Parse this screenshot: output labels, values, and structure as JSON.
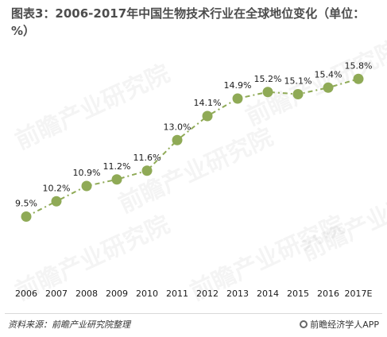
{
  "title": "图表3：2006-2017年中国生物技术行业在全球地位变化（单位：%）",
  "source": "资料来源：前瞻产业研究院整理",
  "brand": "前瞻经济学人APP",
  "watermark": "前瞻产业研究院",
  "chart_data": {
    "type": "line",
    "categories": [
      "2006",
      "2007",
      "2008",
      "2009",
      "2010",
      "2011",
      "2012",
      "2013",
      "2014",
      "2015",
      "2016",
      "2017E"
    ],
    "values": [
      9.5,
      10.2,
      10.9,
      11.2,
      11.6,
      13.0,
      14.1,
      14.9,
      15.2,
      15.1,
      15.4,
      15.8
    ],
    "labels": [
      "9.5%",
      "10.2%",
      "10.9%",
      "11.2%",
      "11.6%",
      "13.0%",
      "14.1%",
      "14.9%",
      "15.2%",
      "15.1%",
      "15.4%",
      "15.8%"
    ],
    "ylim": [
      8.5,
      16.5
    ],
    "grid": false,
    "legend": "none",
    "line_color": "#8faa56",
    "marker_color": "#8faa56"
  }
}
